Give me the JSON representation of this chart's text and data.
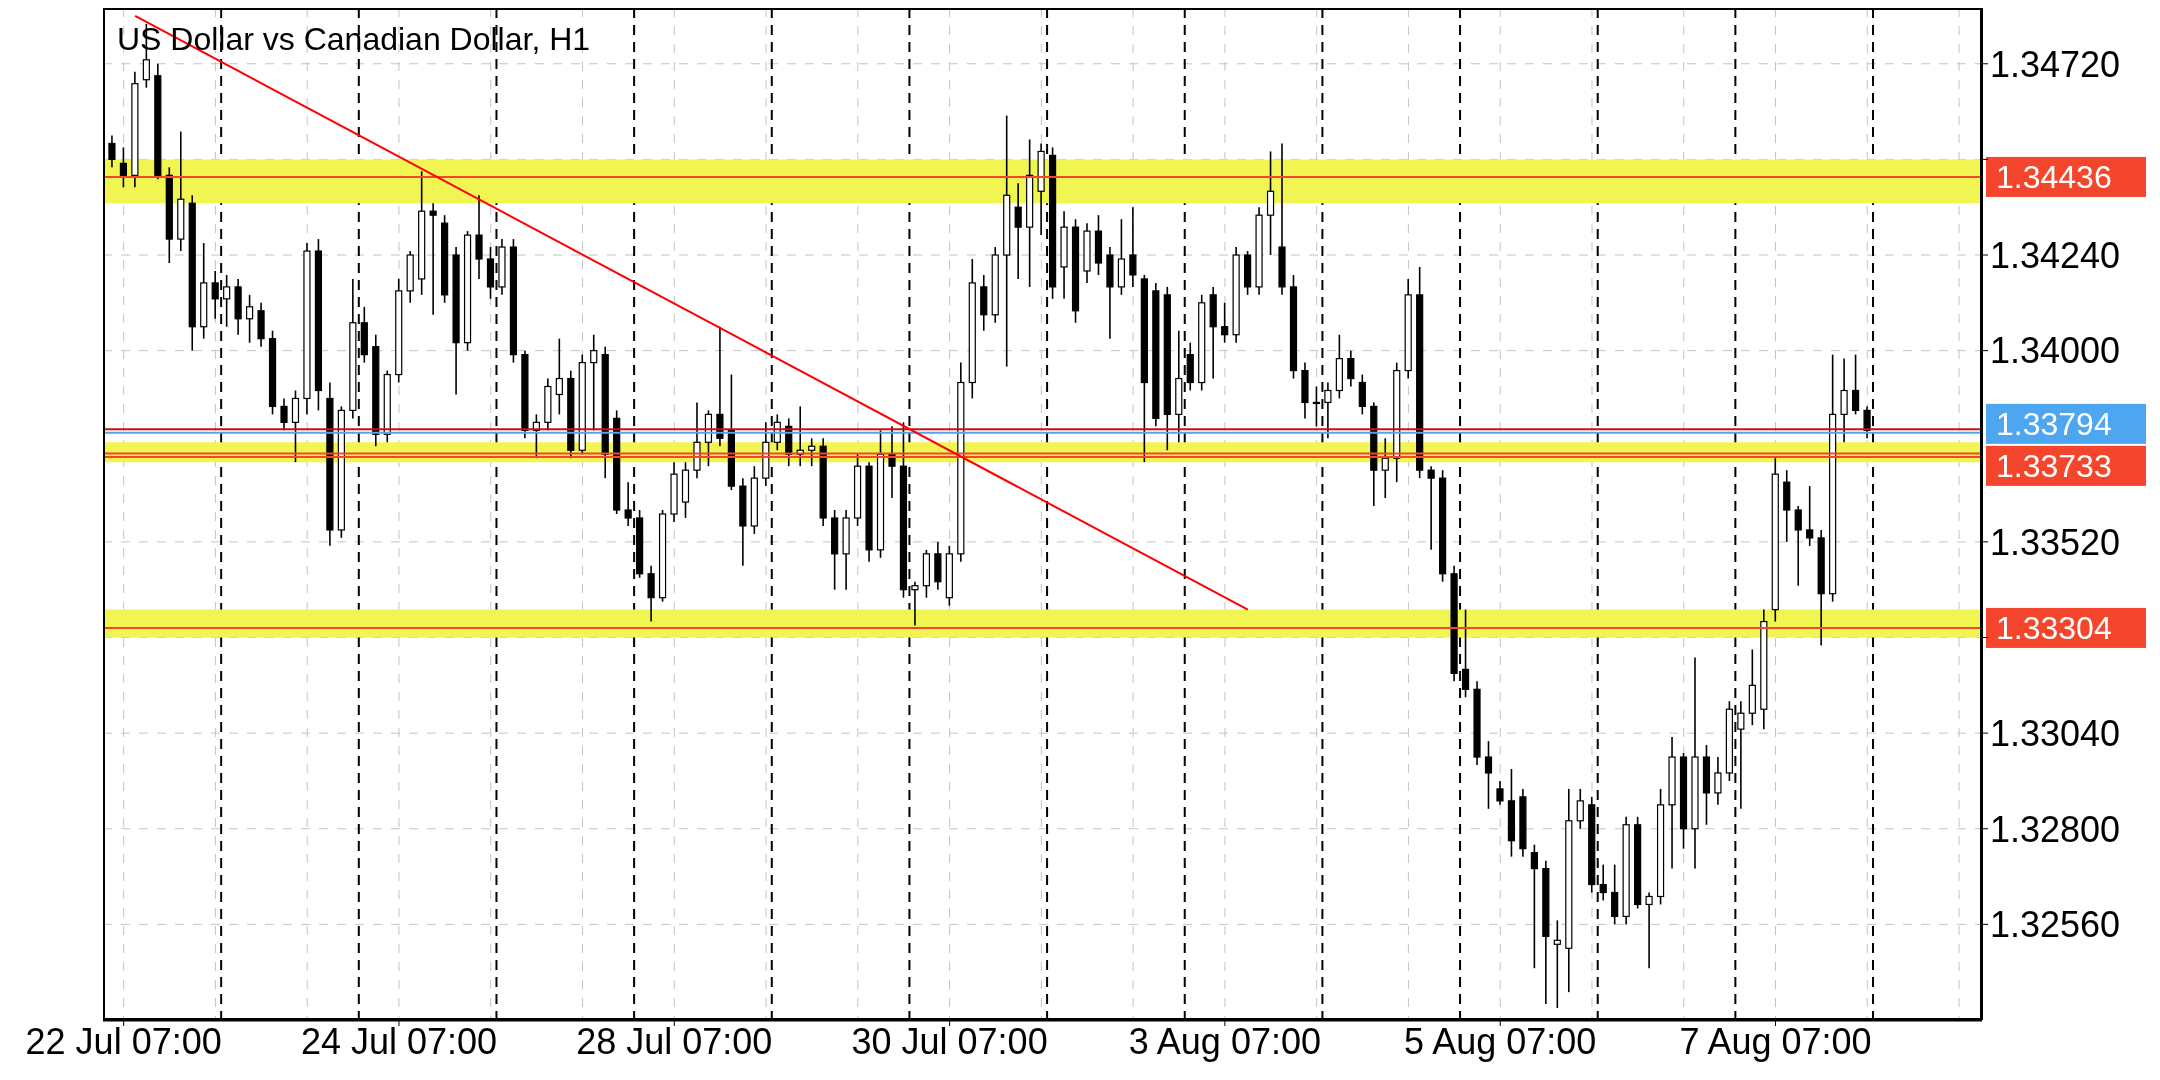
{
  "chart_data": {
    "type": "candlestick",
    "title": "US Dollar vs Canadian Dollar, H1",
    "color": "#000000",
    "categories": [
      null,
      "22 Jul 07:00",
      null,
      null,
      null,
      null,
      null,
      null,
      null,
      null,
      null,
      null,
      null,
      null,
      null,
      null,
      null,
      null,
      null,
      null,
      null,
      null,
      null,
      null,
      null,
      "24 Jul 07:00",
      null,
      null,
      null,
      null,
      null,
      null,
      null,
      null,
      null,
      null,
      null,
      null,
      null,
      null,
      null,
      null,
      null,
      null,
      null,
      null,
      null,
      null,
      null,
      "28 Jul 07:00",
      null,
      null,
      null,
      null,
      null,
      null,
      null,
      null,
      null,
      null,
      null,
      null,
      null,
      null,
      null,
      null,
      null,
      null,
      null,
      null,
      null,
      null,
      null,
      "30 Jul 07:00",
      null,
      null,
      null,
      null,
      null,
      null,
      null,
      null,
      null,
      null,
      null,
      null,
      null,
      null,
      null,
      null,
      null,
      null,
      null,
      null,
      null,
      null,
      null,
      "3 Aug 07:00",
      null,
      null,
      null,
      null,
      null,
      null,
      null,
      null,
      null,
      null,
      null,
      null,
      null,
      null,
      null,
      null,
      null,
      null,
      null,
      null,
      null,
      null,
      null,
      "5 Aug 07:00",
      null,
      null,
      null,
      null,
      null,
      null,
      null,
      null,
      null,
      null,
      null,
      null,
      null,
      null,
      null,
      null,
      null,
      null,
      null,
      null,
      null,
      null,
      null,
      "7 Aug 07:00",
      null,
      null,
      null,
      null,
      null,
      null,
      null,
      null
    ],
    "ohlc": [
      [
        1.3452,
        1.3454,
        1.3446,
        1.3448
      ],
      [
        1.3447,
        1.3451,
        1.3441,
        1.3444
      ],
      [
        1.3444,
        1.347,
        1.3441,
        1.3467
      ],
      [
        1.3468,
        1.3482,
        1.3466,
        1.3473
      ],
      [
        1.3469,
        1.3472,
        1.3443,
        1.3444
      ],
      [
        1.3444,
        1.3446,
        1.3422,
        1.3428
      ],
      [
        1.3428,
        1.3455,
        1.3425,
        1.3438
      ],
      [
        1.3437,
        1.3439,
        1.34,
        1.3406
      ],
      [
        1.3406,
        1.3427,
        1.3403,
        1.3417
      ],
      [
        1.3417,
        1.342,
        1.3408,
        1.3413
      ],
      [
        1.3413,
        1.3419,
        1.3406,
        1.3416
      ],
      [
        1.3416,
        1.3418,
        1.3404,
        1.3408
      ],
      [
        1.3408,
        1.3414,
        1.3402,
        1.3411
      ],
      [
        1.341,
        1.3412,
        1.3401,
        1.3403
      ],
      [
        1.3403,
        1.3405,
        1.3384,
        1.3386
      ],
      [
        1.3386,
        1.3388,
        1.338,
        1.3382
      ],
      [
        1.3382,
        1.339,
        1.3372,
        1.3388
      ],
      [
        1.3388,
        1.3427,
        1.3384,
        1.3425
      ],
      [
        1.3425,
        1.3428,
        1.3385,
        1.339
      ],
      [
        1.3388,
        1.3392,
        1.3351,
        1.3355
      ],
      [
        1.3355,
        1.3386,
        1.3353,
        1.3385
      ],
      [
        1.3385,
        1.3418,
        1.3383,
        1.3407
      ],
      [
        1.3407,
        1.3411,
        1.3397,
        1.3399
      ],
      [
        1.3401,
        1.3404,
        1.3376,
        1.3379
      ],
      [
        1.3379,
        1.3395,
        1.3377,
        1.3394
      ],
      [
        1.3394,
        1.3418,
        1.3392,
        1.3415
      ],
      [
        1.3415,
        1.3425,
        1.3412,
        1.3424
      ],
      [
        1.3418,
        1.3445,
        1.3414,
        1.3435
      ],
      [
        1.3435,
        1.3437,
        1.3409,
        1.3434
      ],
      [
        1.3432,
        1.3434,
        1.3412,
        1.3414
      ],
      [
        1.3424,
        1.3426,
        1.3389,
        1.3402
      ],
      [
        1.3402,
        1.343,
        1.34,
        1.3429
      ],
      [
        1.3429,
        1.3439,
        1.3418,
        1.3423
      ],
      [
        1.3423,
        1.3426,
        1.3413,
        1.3416
      ],
      [
        1.3416,
        1.3428,
        1.3414,
        1.3426
      ],
      [
        1.3426,
        1.3428,
        1.3397,
        1.3399
      ],
      [
        1.3399,
        1.34,
        1.3378,
        1.338
      ],
      [
        1.338,
        1.3384,
        1.3373,
        1.3382
      ],
      [
        1.3382,
        1.3393,
        1.338,
        1.3391
      ],
      [
        1.3389,
        1.3403,
        1.3384,
        1.3393
      ],
      [
        1.3393,
        1.3395,
        1.3373,
        1.3375
      ],
      [
        1.3375,
        1.3399,
        1.3374,
        1.3397
      ],
      [
        1.3397,
        1.3404,
        1.338,
        1.34
      ],
      [
        1.3399,
        1.3401,
        1.3368,
        1.3374
      ],
      [
        1.3383,
        1.3385,
        1.3359,
        1.336
      ],
      [
        1.336,
        1.3367,
        1.3356,
        1.3358
      ],
      [
        1.3358,
        1.336,
        1.3343,
        1.3344
      ],
      [
        1.3344,
        1.3346,
        1.3332,
        1.3338
      ],
      [
        1.3338,
        1.336,
        1.3337,
        1.3359
      ],
      [
        1.3359,
        1.3372,
        1.3357,
        1.3369
      ],
      [
        1.3362,
        1.3372,
        1.3358,
        1.337
      ],
      [
        1.337,
        1.3387,
        1.3368,
        1.3377
      ],
      [
        1.3377,
        1.3385,
        1.3371,
        1.3384
      ],
      [
        1.3384,
        1.3406,
        1.3376,
        1.3378
      ],
      [
        1.338,
        1.3394,
        1.3365,
        1.3366
      ],
      [
        1.3366,
        1.3368,
        1.3346,
        1.3356
      ],
      [
        1.3356,
        1.3371,
        1.3354,
        1.3368
      ],
      [
        1.3368,
        1.3382,
        1.3366,
        1.3377
      ],
      [
        1.3377,
        1.3384,
        1.3375,
        1.3382
      ],
      [
        1.3381,
        1.3383,
        1.3371,
        1.3374
      ],
      [
        1.3374,
        1.3386,
        1.3371,
        1.3375
      ],
      [
        1.3375,
        1.3378,
        1.3371,
        1.3376
      ],
      [
        1.3376,
        1.3378,
        1.3356,
        1.3358
      ],
      [
        1.3358,
        1.336,
        1.334,
        1.3349
      ],
      [
        1.3349,
        1.336,
        1.334,
        1.3358
      ],
      [
        1.3358,
        1.3374,
        1.3356,
        1.3371
      ],
      [
        1.3371,
        1.3372,
        1.3347,
        1.335
      ],
      [
        1.335,
        1.338,
        1.3348,
        1.3374
      ],
      [
        1.3374,
        1.3381,
        1.3363,
        1.3371
      ],
      [
        1.3371,
        1.3382,
        1.3338,
        1.334
      ],
      [
        1.334,
        1.3342,
        1.3331,
        1.3341
      ],
      [
        1.3341,
        1.335,
        1.3338,
        1.3349
      ],
      [
        1.3349,
        1.3352,
        1.334,
        1.3342
      ],
      [
        1.3338,
        1.3351,
        1.3336,
        1.3349
      ],
      [
        1.3349,
        1.3397,
        1.3347,
        1.3392
      ],
      [
        1.3392,
        1.3423,
        1.3388,
        1.3417
      ],
      [
        1.3416,
        1.3419,
        1.3405,
        1.3409
      ],
      [
        1.3409,
        1.3426,
        1.3407,
        1.3424
      ],
      [
        1.3424,
        1.3459,
        1.3396,
        1.3439
      ],
      [
        1.3436,
        1.3442,
        1.3418,
        1.3431
      ],
      [
        1.3431,
        1.3453,
        1.3416,
        1.3444
      ],
      [
        1.344,
        1.3452,
        1.3429,
        1.345
      ],
      [
        1.3449,
        1.3451,
        1.3413,
        1.3416
      ],
      [
        1.3421,
        1.3435,
        1.3413,
        1.3431
      ],
      [
        1.3431,
        1.3433,
        1.3407,
        1.341
      ],
      [
        1.342,
        1.3432,
        1.3417,
        1.343
      ],
      [
        1.343,
        1.3434,
        1.3419,
        1.3422
      ],
      [
        1.3424,
        1.3426,
        1.3403,
        1.3416
      ],
      [
        1.3416,
        1.3433,
        1.3414,
        1.3423
      ],
      [
        1.3424,
        1.3436,
        1.3416,
        1.3419
      ],
      [
        1.3418,
        1.3419,
        1.3372,
        1.3392
      ],
      [
        1.3415,
        1.3417,
        1.3381,
        1.3383
      ],
      [
        1.3414,
        1.3416,
        1.3375,
        1.3384
      ],
      [
        1.3384,
        1.3405,
        1.3377,
        1.3393
      ],
      [
        1.3399,
        1.3402,
        1.339,
        1.3392
      ],
      [
        1.3392,
        1.3414,
        1.339,
        1.3412
      ],
      [
        1.3414,
        1.3416,
        1.3393,
        1.3406
      ],
      [
        1.3406,
        1.3412,
        1.3402,
        1.3404
      ],
      [
        1.3404,
        1.3426,
        1.3402,
        1.3424
      ],
      [
        1.3424,
        1.3425,
        1.3414,
        1.3416
      ],
      [
        1.3416,
        1.3436,
        1.3414,
        1.3434
      ],
      [
        1.3434,
        1.345,
        1.3424,
        1.344
      ],
      [
        1.3426,
        1.3452,
        1.3414,
        1.3416
      ],
      [
        1.3416,
        1.3419,
        1.3393,
        1.3395
      ],
      [
        1.3395,
        1.3397,
        1.3383,
        1.3387
      ],
      [
        1.3387,
        1.3391,
        1.3381,
        1.3387
      ],
      [
        1.3387,
        1.3392,
        1.3378,
        1.339
      ],
      [
        1.339,
        1.3404,
        1.3388,
        1.3398
      ],
      [
        1.3398,
        1.34,
        1.3391,
        1.3393
      ],
      [
        1.3392,
        1.3394,
        1.3384,
        1.3386
      ],
      [
        1.3386,
        1.3387,
        1.3361,
        1.337
      ],
      [
        1.337,
        1.3378,
        1.3363,
        1.3373
      ],
      [
        1.3373,
        1.3397,
        1.3367,
        1.3395
      ],
      [
        1.3395,
        1.3418,
        1.3393,
        1.3414
      ],
      [
        1.3414,
        1.3421,
        1.3368,
        1.337
      ],
      [
        1.337,
        1.3371,
        1.335,
        1.3368
      ],
      [
        1.3368,
        1.337,
        1.3342,
        1.3344
      ],
      [
        1.3344,
        1.3346,
        1.3317,
        1.3319
      ],
      [
        1.332,
        1.3335,
        1.3313,
        1.3315
      ],
      [
        1.3315,
        1.3317,
        1.3296,
        1.3298
      ],
      [
        1.3298,
        1.3302,
        1.3285,
        1.3294
      ],
      [
        1.329,
        1.3292,
        1.3286,
        1.3287
      ],
      [
        1.3287,
        1.3295,
        1.3273,
        1.3277
      ],
      [
        1.3288,
        1.329,
        1.3273,
        1.3275
      ],
      [
        1.3274,
        1.3276,
        1.3245,
        1.327
      ],
      [
        1.327,
        1.3272,
        1.3236,
        1.3253
      ],
      [
        1.3251,
        1.3257,
        1.3235,
        1.3252
      ],
      [
        1.325,
        1.329,
        1.3239,
        1.3282
      ],
      [
        1.3282,
        1.329,
        1.328,
        1.3287
      ],
      [
        1.3286,
        1.3288,
        1.3264,
        1.3266
      ],
      [
        1.3266,
        1.3271,
        1.3262,
        1.3264
      ],
      [
        1.3264,
        1.3271,
        1.3256,
        1.3258
      ],
      [
        1.3258,
        1.3283,
        1.3256,
        1.3281
      ],
      [
        1.3281,
        1.3283,
        1.326,
        1.3261
      ],
      [
        1.3261,
        1.3264,
        1.3245,
        1.3263
      ],
      [
        1.3263,
        1.329,
        1.3261,
        1.3286
      ],
      [
        1.3286,
        1.3303,
        1.327,
        1.3298
      ],
      [
        1.3298,
        1.3299,
        1.3275,
        1.328
      ],
      [
        1.328,
        1.3323,
        1.327,
        1.3298
      ],
      [
        1.3298,
        1.3301,
        1.3281,
        1.3289
      ],
      [
        1.3289,
        1.3298,
        1.3286,
        1.3294
      ],
      [
        1.3294,
        1.3312,
        1.3292,
        1.331
      ],
      [
        1.3305,
        1.3312,
        1.3285,
        1.3309
      ],
      [
        1.3309,
        1.3325,
        1.3306,
        1.3316
      ],
      [
        1.331,
        1.3335,
        1.3305,
        1.3332
      ],
      [
        1.3335,
        1.3373,
        1.3332,
        1.3369
      ],
      [
        1.3367,
        1.337,
        1.3352,
        1.336
      ],
      [
        1.336,
        1.3361,
        1.3341,
        1.3355
      ],
      [
        1.3355,
        1.3366,
        1.3351,
        1.3353
      ],
      [
        1.3353,
        1.3355,
        1.3326,
        1.3339
      ],
      [
        1.3339,
        1.3399,
        1.3337,
        1.3384
      ],
      [
        1.3384,
        1.3398,
        1.3377,
        1.339
      ],
      [
        1.339,
        1.3399,
        1.3384,
        1.3385
      ],
      [
        1.3385,
        1.3386,
        1.3378,
        1.338
      ]
    ],
    "series": [
      {
        "type": "line",
        "color": "#ff0000",
        "values": [
          null,
          null,
          1.3484,
          null,
          null,
          null,
          null,
          null,
          null,
          null,
          null,
          null,
          null,
          null,
          null,
          null,
          null,
          null,
          null,
          null,
          null,
          null,
          null,
          null,
          null,
          null,
          null,
          null,
          null,
          null,
          null,
          null,
          null,
          null,
          null,
          null,
          null,
          null,
          null,
          null,
          null,
          null,
          null,
          null,
          null,
          null,
          null,
          null,
          null,
          null,
          null,
          null,
          null,
          null,
          null,
          null,
          null,
          null,
          null,
          null,
          null,
          null,
          null,
          null,
          null,
          null,
          null,
          null,
          null,
          null,
          null,
          null,
          null,
          null,
          null,
          null,
          null,
          null,
          null,
          null,
          null,
          null,
          null,
          null,
          null,
          null,
          null,
          null,
          null,
          null,
          null,
          null,
          null,
          null,
          null,
          null,
          null,
          null,
          null,
          1.3335,
          null,
          null,
          null,
          null,
          null,
          null,
          null,
          null,
          null,
          null,
          null,
          null,
          null,
          null,
          null,
          null,
          null,
          null,
          null,
          null,
          null,
          null,
          null,
          null,
          null,
          null,
          null,
          null,
          null,
          null,
          null,
          null,
          null,
          null,
          null,
          null,
          null,
          null,
          null,
          null,
          null,
          null,
          null,
          null,
          null,
          null,
          null,
          null,
          null,
          null,
          null,
          null,
          null,
          null
        ]
      }
    ],
    "ylim": [
      1.3232,
      1.3486
    ],
    "yticks": [
      {
        "value": 1.3472,
        "label": "1.34720"
      },
      {
        "value": 1.3448,
        "label": null
      },
      {
        "value": 1.3424,
        "label": "1.34240"
      },
      {
        "value": 1.34,
        "label": "1.34000"
      },
      {
        "value": 1.3352,
        "label": "1.33520"
      },
      {
        "value": 1.3328,
        "label": null
      },
      {
        "value": 1.3304,
        "label": "1.33040"
      },
      {
        "value": 1.328,
        "label": "1.32800"
      },
      {
        "value": 1.3256,
        "label": "1.32560"
      }
    ],
    "grid": true,
    "bands": [
      {
        "axis": "y",
        "from": 1.3437,
        "to": 1.3448,
        "color": "#f0f552"
      },
      {
        "axis": "y",
        "from": 1.3372,
        "to": 1.3377,
        "color": "#f0f552"
      },
      {
        "axis": "y",
        "from": 1.3328,
        "to": 1.3335,
        "color": "#f0f552"
      }
    ],
    "ref_lines": [
      {
        "axis": "y",
        "value": 1.34436,
        "label": "1.34436",
        "color": "#f4462c"
      },
      {
        "axis": "y",
        "value": 1.33803,
        "color": "#c81010"
      },
      {
        "axis": "y",
        "value": 1.33794,
        "label": "1.33794",
        "color": "#4ea5f0"
      },
      {
        "axis": "y",
        "value": 1.33742,
        "color": "#f4462c"
      },
      {
        "axis": "y",
        "value": 1.33733,
        "label": "1.33733",
        "color": "#f4462c"
      },
      {
        "axis": "y",
        "value": 1.33304,
        "label": "1.33304",
        "color": "#f4462c"
      }
    ]
  }
}
